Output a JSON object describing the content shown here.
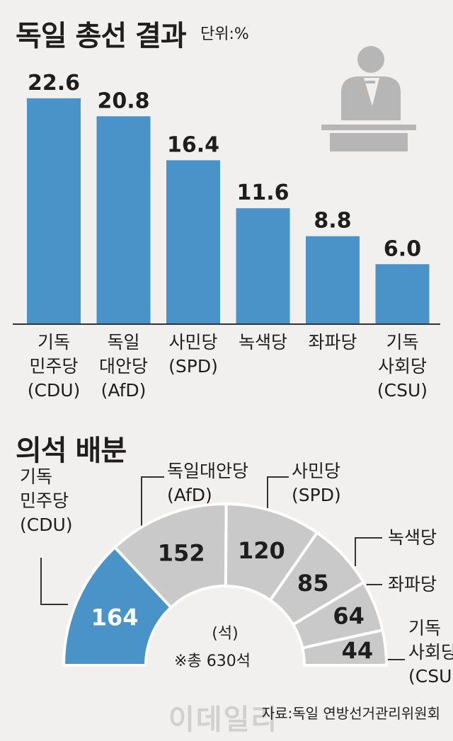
{
  "header": {
    "title": "독일 총선 결과",
    "unit": "단위:%"
  },
  "colors": {
    "bar": "#4a93c8",
    "highlight": "#4a93c8",
    "seat": "#c9c9c9",
    "icon": "#b6b6b6"
  },
  "chart_data": [
    {
      "type": "bar",
      "title": "독일 총선 결과",
      "unit": "단위:%",
      "categories": [
        [
          "기독",
          "민주당",
          "(CDU)"
        ],
        [
          "독일",
          "대안당",
          "(AfD)"
        ],
        [
          "사민당",
          "(SPD)"
        ],
        [
          "녹색당"
        ],
        [
          "좌파당"
        ],
        [
          "기독",
          "사회당",
          "(CSU)"
        ]
      ],
      "values": [
        22.6,
        20.8,
        16.4,
        11.6,
        8.8,
        6.0
      ],
      "value_labels": [
        "22.6",
        "20.8",
        "16.4",
        "11.6",
        "8.8",
        "6.0"
      ]
    },
    {
      "type": "pie",
      "title": "의석 배분",
      "center_unit": "(석)",
      "total_note": "※총 630석",
      "categories": [
        [
          "기독",
          "민주당",
          "(CDU)"
        ],
        [
          "독일대안당",
          "(AfD)"
        ],
        [
          "사민당",
          "(SPD)"
        ],
        [
          "녹색당"
        ],
        [
          "좌파당"
        ],
        [
          "기독",
          "사회당",
          "(CSU)"
        ]
      ],
      "values": [
        164,
        152,
        120,
        85,
        64,
        44
      ],
      "value_labels": [
        "164",
        "152",
        "120",
        "85",
        "64",
        "44"
      ]
    }
  ],
  "seats_section": {
    "title": "의석 배분"
  },
  "footer": {
    "source": "자료:독일 연방선거관리위원회",
    "watermark": "이데일리"
  }
}
